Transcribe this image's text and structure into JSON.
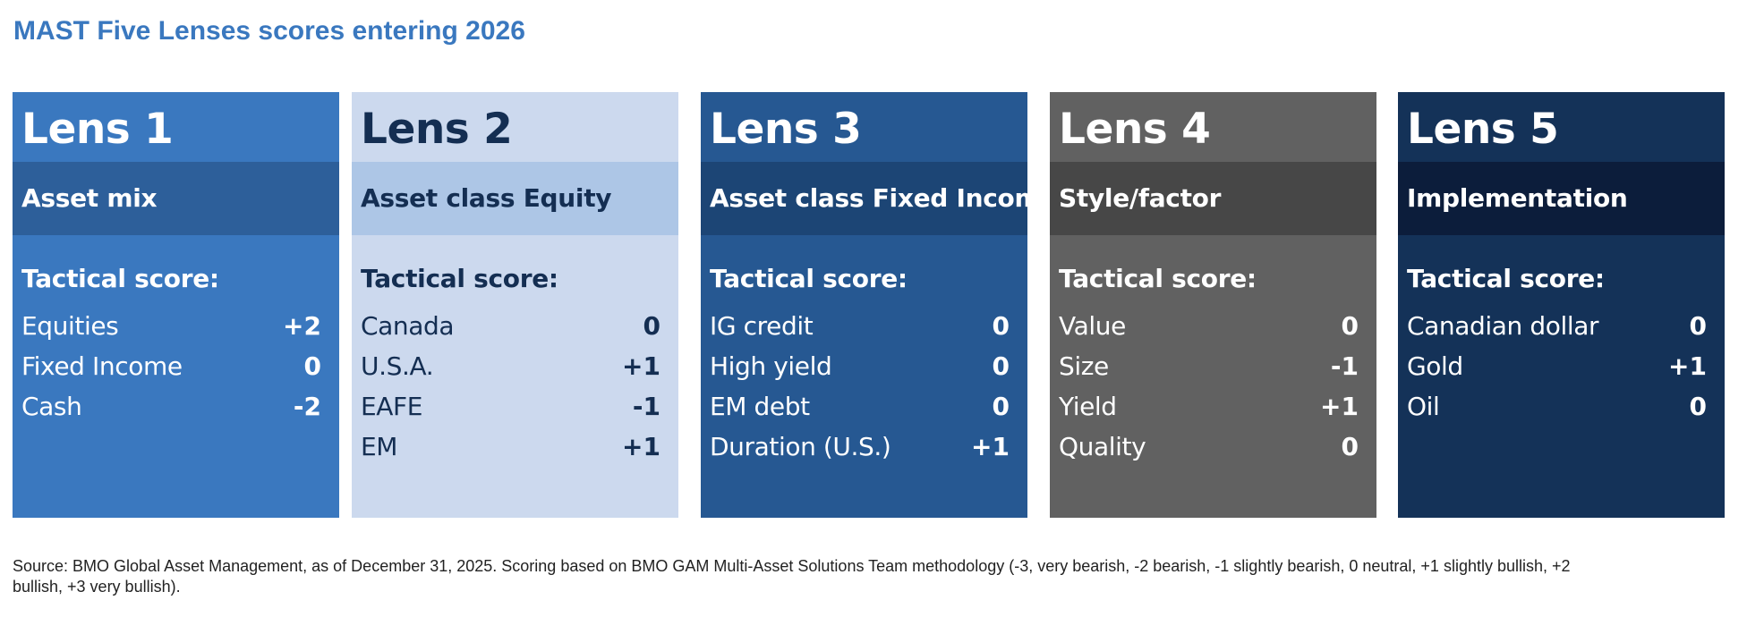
{
  "title": "MAST Five Lenses scores entering 2026",
  "source_note": "Source: BMO Global Asset Management, as of December 31, 2025. Scoring based on BMO GAM Multi-Asset Solutions Team methodology (-3, very bearish, -2 bearish, -1 slightly bearish, 0 neutral, +1 slightly bullish, +2 bullish, +3 very bullish).",
  "lenses": [
    {
      "lens_label": "Lens 1",
      "category": "Asset mix",
      "score_heading": "Tactical score:",
      "colors": {
        "card": "#3a78bf",
        "band": "#2d5f9a",
        "text": "#ffffff"
      },
      "scores": [
        {
          "label": "Equities",
          "value": "+2"
        },
        {
          "label": "Fixed Income",
          "value": "0"
        },
        {
          "label": "Cash",
          "value": "-2"
        }
      ]
    },
    {
      "lens_label": "Lens 2",
      "category": "Asset class Equity",
      "score_heading": "Tactical score:",
      "colors": {
        "card": "#ccd9ee",
        "band": "#adc6e6",
        "text": "#142e52"
      },
      "scores": [
        {
          "label": "Canada",
          "value": "0"
        },
        {
          "label": "U.S.A.",
          "value": "+1"
        },
        {
          "label": "EAFE",
          "value": "-1"
        },
        {
          "label": "EM",
          "value": "+1"
        }
      ]
    },
    {
      "lens_label": "Lens 3",
      "category": "Asset class Fixed Income",
      "score_heading": "Tactical score:",
      "colors": {
        "card": "#265892",
        "band": "#1c4575",
        "text": "#ffffff"
      },
      "scores": [
        {
          "label": "IG credit",
          "value": "0"
        },
        {
          "label": "High yield",
          "value": "0"
        },
        {
          "label": "EM debt",
          "value": "0"
        },
        {
          "label": "Duration (U.S.)",
          "value": "+1"
        }
      ]
    },
    {
      "lens_label": "Lens 4",
      "category": "Style/factor",
      "score_heading": "Tactical score:",
      "colors": {
        "card": "#616161",
        "band": "#474747",
        "text": "#ffffff"
      },
      "scores": [
        {
          "label": "Value",
          "value": "0"
        },
        {
          "label": "Size",
          "value": "-1"
        },
        {
          "label": "Yield",
          "value": "+1"
        },
        {
          "label": "Quality",
          "value": "0"
        }
      ]
    },
    {
      "lens_label": "Lens 5",
      "category": "Implementation",
      "score_heading": "Tactical score:",
      "colors": {
        "card": "#143258",
        "band": "#0c1d3b",
        "text": "#ffffff"
      },
      "scores": [
        {
          "label": "Canadian dollar",
          "value": "0"
        },
        {
          "label": "Gold",
          "value": "+1"
        },
        {
          "label": "Oil",
          "value": "0"
        }
      ]
    }
  ]
}
